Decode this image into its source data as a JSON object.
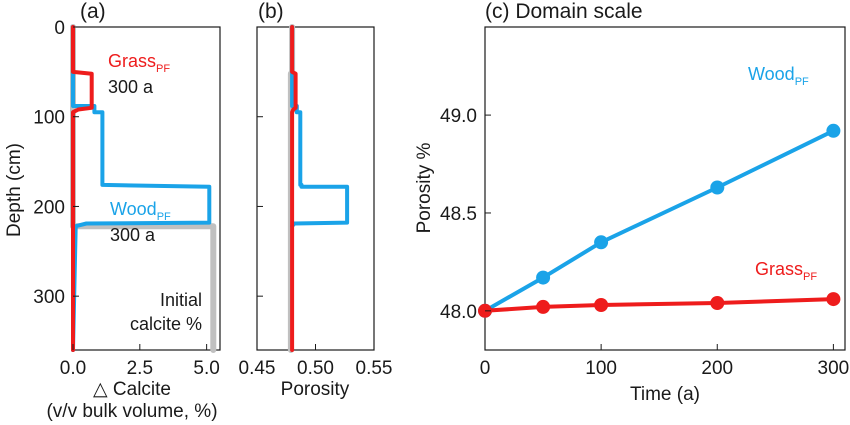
{
  "colors": {
    "wood": "#1aa3e8",
    "grass": "#ee1c1c",
    "initial": "#c0c0c0",
    "axis": "#1a1a1a"
  },
  "chart_data": [
    {
      "type": "line",
      "panel_label": "(a)",
      "xlabel": "△ Calcite",
      "xlabel2": "(v/v bulk volume, %)",
      "ylabel": "Depth (cm)",
      "xlim": [
        0,
        5.5
      ],
      "ylim": [
        0,
        360
      ],
      "y_inverted": true,
      "xticks": [
        "0.0",
        "2.5",
        "5.0"
      ],
      "yticks": [
        "0",
        "100",
        "200",
        "300"
      ],
      "series": [
        {
          "name": "Initial calcite %",
          "color_key": "initial",
          "x": [
            0,
            0,
            5.25,
            5.25
          ],
          "y": [
            0,
            222,
            222,
            360
          ]
        },
        {
          "name": "Wood_PF 300 a",
          "color_key": "wood",
          "x": [
            0,
            0,
            0.8,
            0.8,
            1.1,
            1.1,
            5.1,
            5.1,
            0.5,
            0.1,
            0
          ],
          "y": [
            0,
            88,
            88,
            95,
            95,
            176,
            178,
            218,
            219,
            222,
            360
          ]
        },
        {
          "name": "Grass_PF 300 a",
          "color_key": "grass",
          "x": [
            0,
            0,
            0.7,
            0.7,
            0.2,
            0,
            0
          ],
          "y": [
            0,
            50,
            52,
            90,
            92,
            95,
            360
          ]
        }
      ],
      "annotations": [
        {
          "main": "Grass",
          "sub": "PF",
          "line2": "300 a",
          "color_key": "grass"
        },
        {
          "main": "Wood",
          "sub": "PF",
          "line2": "300 a",
          "color_key": "wood"
        },
        {
          "main": "Initial",
          "line2": "calcite %",
          "color_key": "initial"
        }
      ]
    },
    {
      "type": "line",
      "panel_label": "(b)",
      "xlabel": "Porosity",
      "xlim": [
        0.45,
        0.55
      ],
      "ylim": [
        0,
        360
      ],
      "y_inverted": true,
      "xticks": [
        "0.45",
        "0.50",
        "0.55"
      ],
      "series": [
        {
          "name": "Initial",
          "color_key": "initial",
          "x": [
            0.48,
            0.48,
            0.479,
            0.479
          ],
          "y": [
            0,
            50,
            52,
            360
          ]
        },
        {
          "name": "Wood_PF",
          "color_key": "wood",
          "x": [
            0.48,
            0.48,
            0.484,
            0.484,
            0.487,
            0.487,
            0.488,
            0.488,
            0.527,
            0.527,
            0.482,
            0.48
          ],
          "y": [
            0,
            88,
            88,
            95,
            95,
            176,
            176,
            178,
            178,
            218,
            219,
            222
          ]
        },
        {
          "name": "Grass_PF",
          "color_key": "grass",
          "x": [
            0.48,
            0.48,
            0.483,
            0.483,
            0.481,
            0.48,
            0.48
          ],
          "y": [
            0,
            50,
            52,
            90,
            92,
            95,
            360
          ]
        }
      ]
    },
    {
      "type": "line",
      "panel_label": "(c) Domain scale",
      "xlabel": "Time (a)",
      "ylabel": "Porosity %",
      "xlim": [
        0,
        310
      ],
      "ylim": [
        47.8,
        49.45
      ],
      "xticks": [
        0,
        100,
        200,
        300
      ],
      "yticks": [
        "48.0",
        "48.5",
        "49.0"
      ],
      "series": [
        {
          "name": "Wood_PF",
          "color_key": "wood",
          "x": [
            0,
            50,
            100,
            200,
            300
          ],
          "y": [
            48.0,
            48.17,
            48.35,
            48.63,
            48.92
          ]
        },
        {
          "name": "Grass_PF",
          "color_key": "grass",
          "x": [
            0,
            50,
            100,
            200,
            300
          ],
          "y": [
            48.0,
            48.02,
            48.03,
            48.04,
            48.06
          ]
        }
      ],
      "annotations": [
        {
          "main": "Wood",
          "sub": "PF",
          "color_key": "wood"
        },
        {
          "main": "Grass",
          "sub": "PF",
          "color_key": "grass"
        }
      ]
    }
  ]
}
